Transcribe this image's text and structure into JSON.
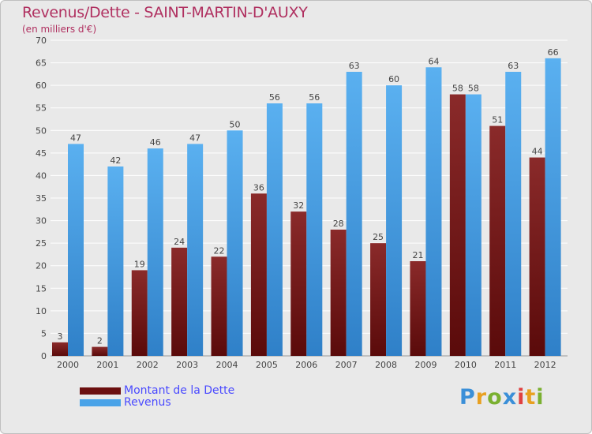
{
  "title": "Revenus/Dette - SAINT-MARTIN-D'AUXY",
  "subtitle": "(en milliers d'€)",
  "colors": {
    "debt": "#6b0f0f",
    "revenue": "#4aa3e8",
    "title": "#b03060",
    "legend_text": "#4a4aff",
    "background": "#e9e9e9",
    "grid": "#ffffff"
  },
  "legend": [
    {
      "label": "Montant de la Dette",
      "color": "#6b0f0f"
    },
    {
      "label": "Revenus",
      "color": "#4aa3e8"
    }
  ],
  "logo": {
    "text": "Proxiti"
  },
  "chart_data": {
    "type": "bar",
    "categories": [
      "2000",
      "2001",
      "2002",
      "2003",
      "2004",
      "2005",
      "2006",
      "2007",
      "2008",
      "2009",
      "2010",
      "2011",
      "2012"
    ],
    "series": [
      {
        "name": "Montant de la Dette",
        "values": [
          3,
          2,
          19,
          24,
          22,
          36,
          32,
          28,
          25,
          21,
          58,
          51,
          44
        ]
      },
      {
        "name": "Revenus",
        "values": [
          47,
          42,
          46,
          47,
          50,
          56,
          56,
          63,
          60,
          64,
          58,
          63,
          66
        ]
      }
    ],
    "ylim": [
      0,
      70
    ],
    "yticks": [
      0,
      5,
      10,
      15,
      20,
      25,
      30,
      35,
      40,
      45,
      50,
      55,
      60,
      65,
      70
    ],
    "grid": true,
    "legend_position": "bottom-left"
  }
}
